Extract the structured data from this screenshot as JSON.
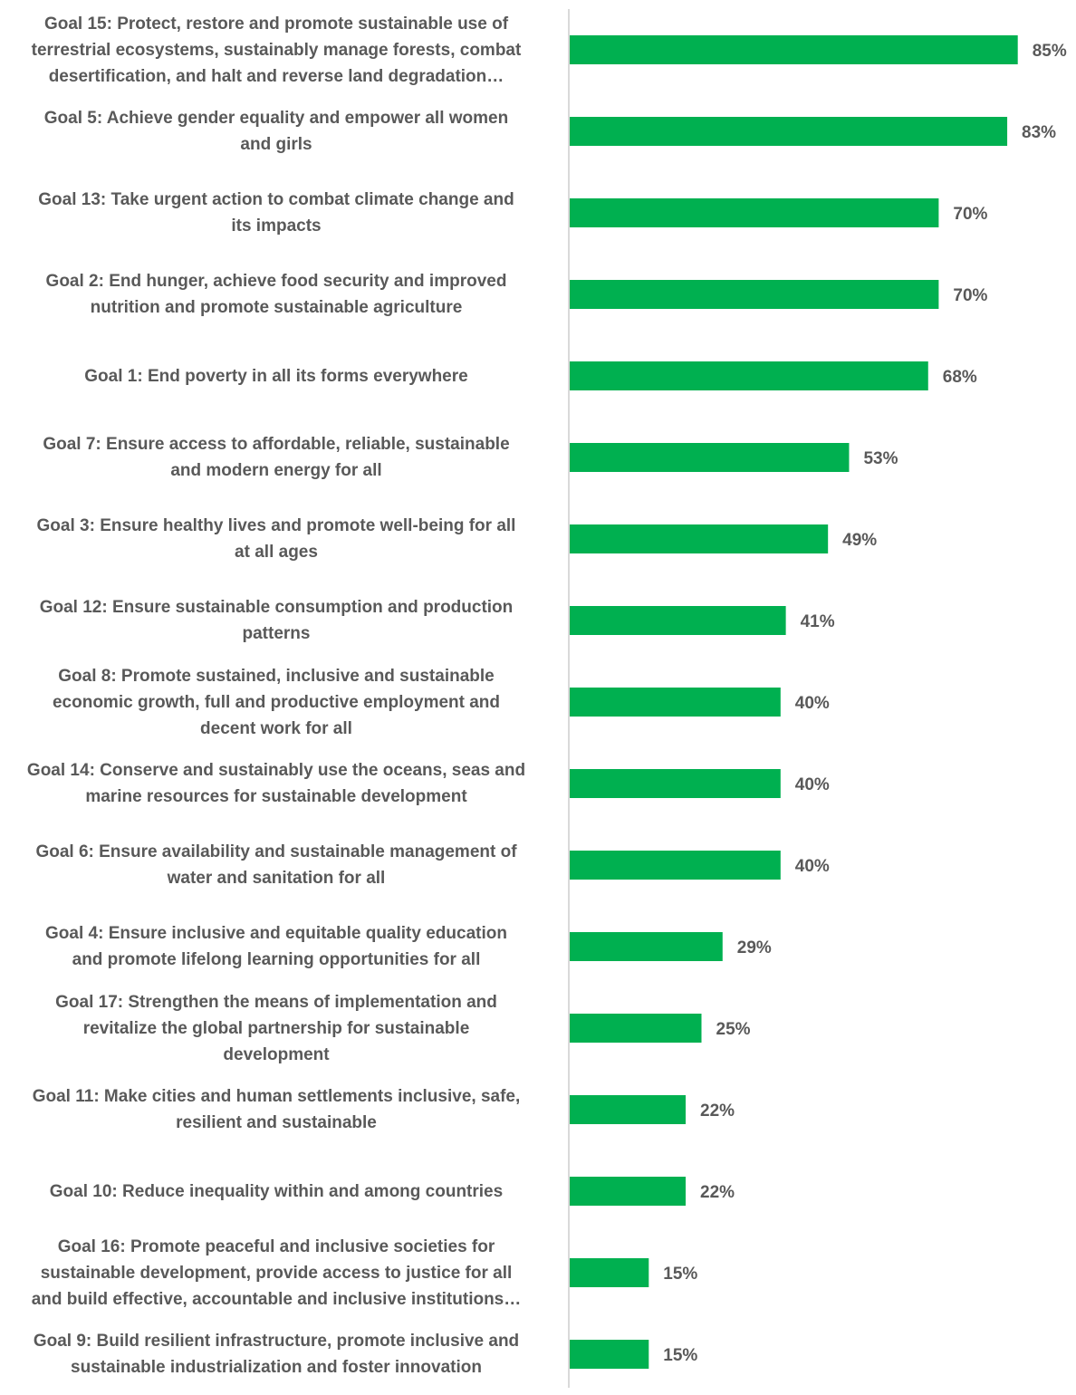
{
  "chart_data": {
    "type": "bar",
    "orientation": "horizontal",
    "categories": [
      "Goal 15: Protect, restore and promote sustainable use of terrestrial ecosystems, sustainably manage forests, combat desertification, and halt and reverse land degradation…",
      "Goal 5: Achieve gender equality and empower all women and girls",
      "Goal 13: Take urgent action to combat climate change and its impacts",
      "Goal 2: End hunger, achieve food security and improved nutrition and promote sustainable agriculture",
      "Goal 1: End poverty in all its forms everywhere",
      "Goal 7: Ensure access to affordable, reliable, sustainable and modern energy for all",
      "Goal 3: Ensure healthy lives and promote well-being for all at all ages",
      "Goal 12: Ensure sustainable consumption and production patterns",
      "Goal 8: Promote sustained, inclusive and sustainable economic growth, full and productive employment and decent work for all",
      "Goal 14: Conserve and sustainably use the oceans, seas and marine resources for sustainable development",
      "Goal 6: Ensure availability and sustainable management of water and sanitation for all",
      "Goal 4: Ensure inclusive and equitable quality education and promote lifelong learning opportunities for all",
      "Goal 17: Strengthen the means of implementation and revitalize the global partnership for sustainable development",
      "Goal 11: Make cities and human settlements inclusive, safe, resilient and sustainable",
      "Goal 10: Reduce inequality within and among countries",
      "Goal 16: Promote peaceful and inclusive societies for sustainable development, provide access to justice for all and build effective, accountable and inclusive institutions…",
      "Goal 9: Build resilient infrastructure, promote inclusive and sustainable industrialization and foster innovation"
    ],
    "label_lines": [
      [
        "Goal 15: Protect, restore and promote sustainable use of",
        "terrestrial ecosystems, sustainably manage forests, combat",
        "desertification, and halt and reverse land degradation…"
      ],
      [
        "Goal 5: Achieve gender equality and empower all women",
        "and girls"
      ],
      [
        "Goal 13: Take urgent action to combat climate change and",
        "its impacts"
      ],
      [
        "Goal 2: End hunger, achieve food security and improved",
        "nutrition and promote sustainable agriculture"
      ],
      [
        "Goal 1: End poverty in all its forms everywhere"
      ],
      [
        "Goal 7: Ensure access to affordable, reliable, sustainable",
        "and modern energy for all"
      ],
      [
        "Goal 3: Ensure healthy lives and promote well-being for all",
        "at all ages"
      ],
      [
        "Goal 12: Ensure sustainable consumption and production",
        "patterns"
      ],
      [
        "Goal 8: Promote sustained, inclusive and sustainable",
        "economic growth, full and productive employment and",
        "decent work for all"
      ],
      [
        "Goal 14: Conserve and sustainably use the oceans, seas and",
        "marine resources for sustainable development"
      ],
      [
        "Goal 6: Ensure availability and sustainable management of",
        "water and sanitation for all"
      ],
      [
        "Goal 4: Ensure inclusive and equitable quality education",
        "and promote lifelong learning opportunities for all"
      ],
      [
        "Goal 17: Strengthen the means of implementation and",
        "revitalize the global partnership for sustainable",
        "development"
      ],
      [
        "Goal 11: Make cities and human settlements inclusive, safe,",
        "resilient and sustainable"
      ],
      [
        "Goal 10: Reduce inequality within and among countries"
      ],
      [
        "Goal 16: Promote peaceful and inclusive societies for",
        "sustainable development, provide access to justice for all",
        "and build effective, accountable and inclusive institutions…"
      ],
      [
        "Goal 9: Build resilient infrastructure, promote inclusive and",
        "sustainable industrialization and foster innovation"
      ]
    ],
    "values": [
      85,
      83,
      70,
      70,
      68,
      53,
      49,
      41,
      40,
      40,
      40,
      29,
      25,
      22,
      22,
      15,
      15
    ],
    "data_labels": [
      "85%",
      "83%",
      "70%",
      "70%",
      "68%",
      "53%",
      "49%",
      "41%",
      "40%",
      "40%",
      "40%",
      "29%",
      "25%",
      "22%",
      "22%",
      "15%",
      "15%"
    ],
    "unit": "%",
    "xlim": [
      0,
      100
    ],
    "title": "",
    "xlabel": "",
    "ylabel": "",
    "grid": false,
    "legend": "none",
    "bar_color": "#00B050",
    "label_color": "#595959",
    "axis_color": "#D9D9D9"
  }
}
